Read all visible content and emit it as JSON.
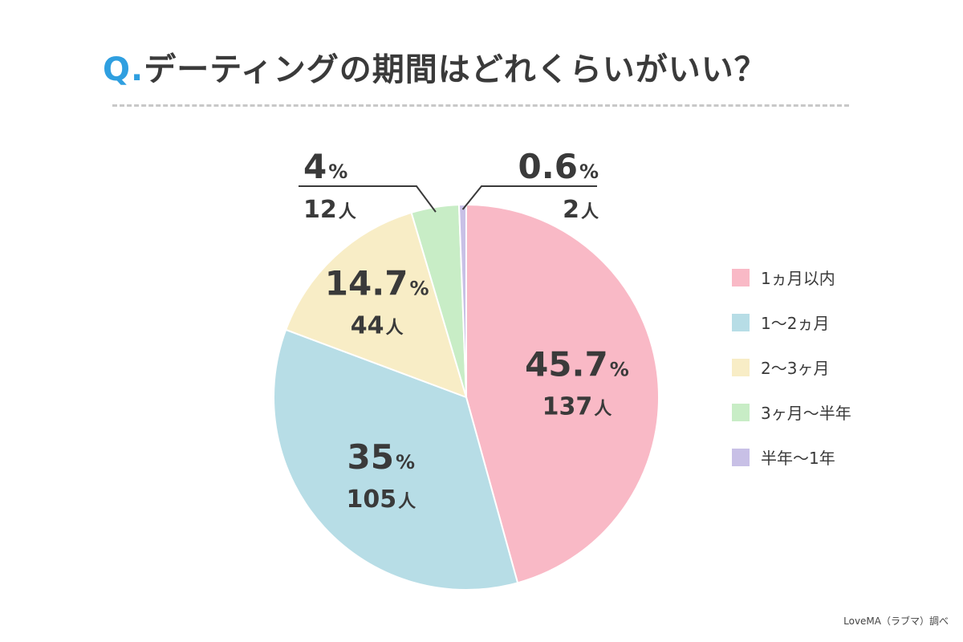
{
  "title": {
    "q_prefix": "Q.",
    "text": "デーティングの期間はどれくらいがいい？"
  },
  "chart_data": {
    "type": "pie",
    "categories": [
      "1ヵ月以内",
      "1〜2ヵ月",
      "2〜3ヶ月",
      "3ヶ月〜半年",
      "半年〜1年"
    ],
    "values": [
      45.7,
      35,
      14.7,
      4,
      0.6
    ],
    "counts": [
      137,
      105,
      44,
      12,
      2
    ],
    "value_labels": [
      "45.7",
      "35",
      "14.7",
      "4",
      "0.6"
    ],
    "count_labels": [
      "137",
      "105",
      "44",
      "12",
      "2"
    ],
    "percent_sign": "%",
    "count_unit": "人",
    "colors": [
      "#f9b9c6",
      "#b7dde6",
      "#f8edc6",
      "#c8edc6",
      "#c8c0e6"
    ],
    "legend_position": "right",
    "start_angle": "12 o'clock",
    "direction": "clockwise"
  },
  "source": "LoveMA（ラブマ）調べ"
}
